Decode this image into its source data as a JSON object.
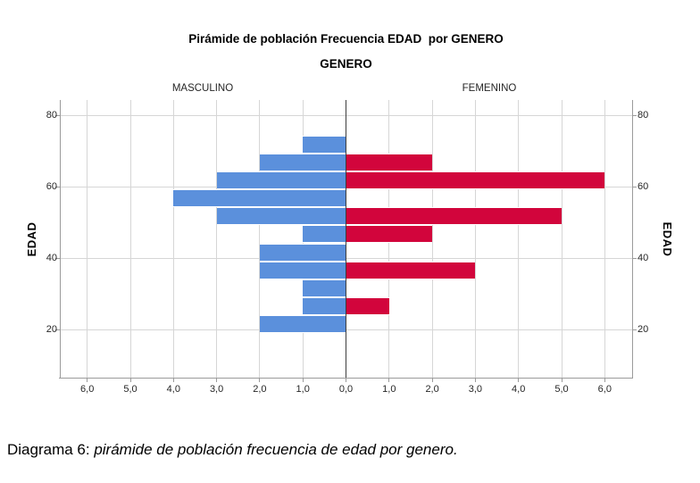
{
  "title": "Pirámide de población Frecuencia EDAD  por GENERO",
  "subtitle": "GENERO",
  "panels": {
    "left": "MASCULINO",
    "right": "FEMENINO"
  },
  "axis": {
    "y_label": "EDAD",
    "y_ticks": [
      "80",
      "60",
      "40",
      "20"
    ],
    "x_ticks": [
      "6,0",
      "5,0",
      "4,0",
      "3,0",
      "2,0",
      "1,0",
      "0,0",
      "1,0",
      "2,0",
      "3,0",
      "4,0",
      "5,0",
      "6,0"
    ]
  },
  "caption": {
    "prefix": "Diagrama 6: ",
    "italic": "pirámide de población frecuencia de edad por genero."
  },
  "colors": {
    "masculino": "#5b90dc",
    "femenino": "#d2053c",
    "gridline": "#d6d6d6",
    "frame": "#9b9b9b",
    "center_line": "#3e3e3e",
    "text": "#000000",
    "tick_text": "#262626"
  },
  "chart_data": {
    "type": "bar",
    "subtype": "population-pyramid",
    "title": "Pirámide de población Frecuencia EDAD  por GENERO",
    "subtitle": "GENERO",
    "panel_left": "MASCULINO",
    "panel_right": "FEMENINO",
    "ylabel": "EDAD",
    "x_unit": "Frecuencia",
    "xlim_each_side": [
      0,
      6.6
    ],
    "x_tick_step": 1.0,
    "ylim": [
      6,
      84
    ],
    "y_gridlines": [
      20,
      40,
      60,
      80
    ],
    "grid": true,
    "age_bins": [
      "19-24",
      "24-29",
      "29-34",
      "34-39",
      "39-44",
      "44-49",
      "49-54",
      "54-59",
      "59-64",
      "64-69",
      "69-74"
    ],
    "series": [
      {
        "name": "MASCULINO",
        "side": "left",
        "color": "#5b90dc",
        "values": [
          2,
          1,
          1,
          2,
          2,
          1,
          3,
          4,
          3,
          2,
          1
        ]
      },
      {
        "name": "FEMENINO",
        "side": "right",
        "color": "#d2053c",
        "values": [
          0,
          1,
          0,
          3,
          0,
          2,
          5,
          0,
          6,
          2,
          0
        ]
      }
    ]
  }
}
